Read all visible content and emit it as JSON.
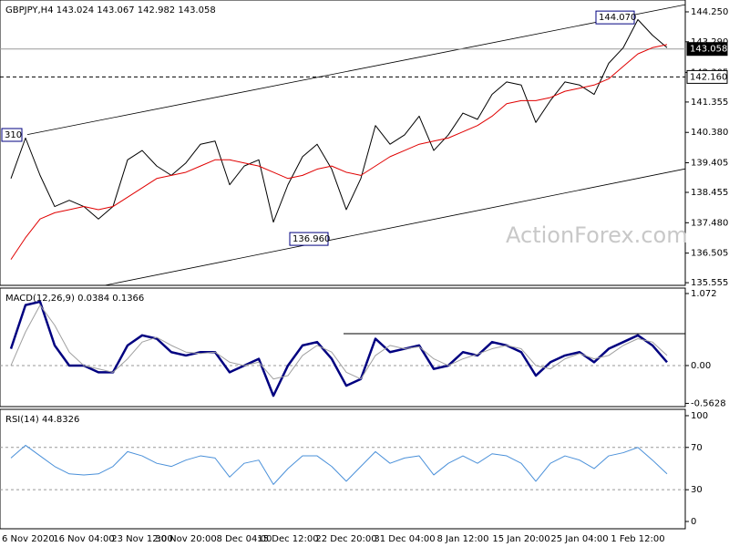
{
  "chart_data": [
    {
      "type": "line",
      "title": "GBPJPY,H4 143.024 143.067 142.982 143.058",
      "ylim": [
        135.47,
        144.63
      ],
      "yticks": [
        {
          "value": 144.25,
          "label": "144.250"
        },
        {
          "value": 143.29,
          "label": "143.290"
        },
        {
          "value": 142.305,
          "label": "142.305"
        },
        {
          "value": 141.355,
          "label": "141.355"
        },
        {
          "value": 140.38,
          "label": "140.380"
        },
        {
          "value": 139.405,
          "label": "139.405"
        },
        {
          "value": 138.455,
          "label": "138.455"
        },
        {
          "value": 137.48,
          "label": "137.480"
        },
        {
          "value": 136.505,
          "label": "136.505"
        },
        {
          "value": 135.555,
          "label": "135.555"
        }
      ],
      "series": [
        {
          "name": "GBPJPY",
          "color": "#000000",
          "values": [
            138.9,
            140.2,
            139.0,
            138.0,
            138.2,
            138.0,
            137.6,
            138.0,
            139.5,
            139.8,
            139.3,
            139.0,
            139.4,
            140.0,
            140.1,
            138.7,
            139.3,
            139.5,
            137.5,
            138.7,
            139.6,
            140.0,
            139.2,
            137.9,
            138.9,
            140.6,
            140.0,
            140.3,
            140.9,
            139.8,
            140.3,
            141.0,
            140.8,
            141.6,
            142.0,
            141.9,
            140.7,
            141.4,
            142.0,
            141.9,
            141.6,
            142.6,
            143.1,
            144.0,
            143.5,
            143.1
          ]
        },
        {
          "name": "SMA",
          "color": "#e00000",
          "values": [
            136.3,
            137.0,
            137.6,
            137.8,
            137.9,
            138.0,
            137.9,
            138.0,
            138.3,
            138.6,
            138.9,
            139.0,
            139.1,
            139.3,
            139.5,
            139.5,
            139.4,
            139.3,
            139.1,
            138.9,
            139.0,
            139.2,
            139.3,
            139.1,
            139.0,
            139.3,
            139.6,
            139.8,
            140.0,
            140.1,
            140.2,
            140.4,
            140.6,
            140.9,
            141.3,
            141.4,
            141.4,
            141.5,
            141.7,
            141.8,
            141.9,
            142.1,
            142.5,
            142.9,
            143.1,
            143.2
          ]
        }
      ],
      "channel_lines": [
        {
          "values": [
            140.31,
            144.48
          ]
        },
        {
          "values": [
            135.47,
            139.21
          ]
        }
      ],
      "price_lines": [
        {
          "value": 143.058,
          "label": "143.058",
          "style": "current"
        },
        {
          "value": 142.16,
          "label": "142.160",
          "style": "dashed"
        }
      ],
      "annotations": [
        {
          "value": 144.07,
          "label": "144.070"
        },
        {
          "value": 136.96,
          "label": "136.960"
        }
      ],
      "partial_label": "310",
      "watermark": "ActionForex.com"
    },
    {
      "type": "line",
      "title": "MACD(12,26,9) 0.0384 0.1366",
      "ylim": [
        -0.611,
        1.153
      ],
      "yticks": [
        1.072,
        {
          "value": 0,
          "label": "0.00"
        },
        -0.5628
      ],
      "levels": [
        0
      ],
      "resistance": 0.475,
      "series": [
        {
          "name": "MACD",
          "color": "#000080",
          "width": 2.5,
          "values": [
            0.25,
            0.9,
            0.95,
            0.3,
            0.0,
            0.0,
            -0.1,
            -0.1,
            0.3,
            0.45,
            0.4,
            0.2,
            0.15,
            0.2,
            0.2,
            -0.1,
            0.0,
            0.1,
            -0.45,
            0.0,
            0.3,
            0.35,
            0.1,
            -0.3,
            -0.2,
            0.4,
            0.2,
            0.25,
            0.3,
            -0.05,
            0.0,
            0.2,
            0.15,
            0.35,
            0.3,
            0.2,
            -0.15,
            0.05,
            0.15,
            0.2,
            0.05,
            0.25,
            0.35,
            0.45,
            0.3,
            0.05
          ]
        },
        {
          "name": "Signal",
          "color": "#a0a0a0",
          "width": 1,
          "values": [
            0.0,
            0.5,
            0.9,
            0.6,
            0.2,
            0.0,
            -0.05,
            -0.1,
            0.1,
            0.35,
            0.42,
            0.3,
            0.2,
            0.18,
            0.2,
            0.05,
            0.0,
            0.05,
            -0.2,
            -0.15,
            0.15,
            0.3,
            0.2,
            -0.1,
            -0.2,
            0.15,
            0.3,
            0.25,
            0.28,
            0.1,
            0.0,
            0.1,
            0.17,
            0.25,
            0.3,
            0.25,
            0.0,
            -0.05,
            0.1,
            0.18,
            0.1,
            0.15,
            0.3,
            0.4,
            0.35,
            0.15
          ]
        }
      ]
    },
    {
      "type": "line",
      "title": "RSI(14) 44.8326",
      "ylim": [
        -6.9,
        106
      ],
      "yticks": [
        100,
        70,
        30,
        0
      ],
      "levels": [
        70,
        30
      ],
      "categories": [
        null,
        "6 Nov 2020",
        null,
        null,
        null,
        "16 Nov 04:00",
        null,
        null,
        null,
        "23 Nov 12:00",
        null,
        null,
        "30 Nov 20:00",
        null,
        null,
        null,
        "8 Dec 04:00",
        null,
        null,
        "15 Dec 12:00",
        null,
        null,
        null,
        "22 Dec 20:00",
        null,
        null,
        null,
        "31 Dec 04:00",
        null,
        null,
        null,
        "8 Jan 12:00",
        null,
        null,
        null,
        "15 Jan 20:00",
        null,
        null,
        null,
        "25 Jan 04:00",
        null,
        null,
        null,
        "1 Feb 12:00",
        null,
        null
      ],
      "series": [
        {
          "name": "RSI",
          "color": "#4a90d9",
          "width": 1,
          "values": [
            60,
            72,
            62,
            52,
            45,
            44,
            45,
            52,
            66,
            62,
            55,
            52,
            58,
            62,
            60,
            42,
            55,
            58,
            35,
            50,
            62,
            62,
            52,
            38,
            52,
            66,
            55,
            60,
            62,
            44,
            55,
            62,
            55,
            64,
            62,
            55,
            38,
            55,
            62,
            58,
            50,
            62,
            65,
            70,
            58,
            45
          ]
        }
      ]
    }
  ]
}
